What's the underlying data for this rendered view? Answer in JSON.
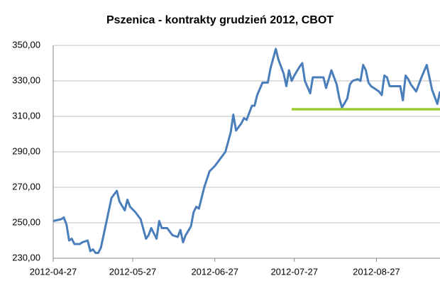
{
  "chart_data": {
    "type": "line",
    "title": "Pszenica - kontrakty grudzień 2012, CBOT",
    "x": [
      "2012-04-27",
      "2012-04-30",
      "2012-05-01",
      "2012-05-02",
      "2012-05-03",
      "2012-05-04",
      "2012-05-05",
      "2012-05-07",
      "2012-05-08",
      "2012-05-10",
      "2012-05-11",
      "2012-05-12",
      "2012-05-13",
      "2012-05-14",
      "2012-05-15",
      "2012-05-17",
      "2012-05-19",
      "2012-05-21",
      "2012-05-22",
      "2012-05-24",
      "2012-05-25",
      "2012-05-26",
      "2012-05-28",
      "2012-05-30",
      "2012-06-01",
      "2012-06-02",
      "2012-06-03",
      "2012-06-05",
      "2012-06-06",
      "2012-06-07",
      "2012-06-09",
      "2012-06-11",
      "2012-06-13",
      "2012-06-14",
      "2012-06-15",
      "2012-06-16",
      "2012-06-18",
      "2012-06-19",
      "2012-06-20",
      "2012-06-21",
      "2012-06-23",
      "2012-06-25",
      "2012-06-27",
      "2012-06-29",
      "2012-07-01",
      "2012-07-03",
      "2012-07-04",
      "2012-07-05",
      "2012-07-07",
      "2012-07-08",
      "2012-07-09",
      "2012-07-11",
      "2012-07-12",
      "2012-07-13",
      "2012-07-15",
      "2012-07-17",
      "2012-07-18",
      "2012-07-20",
      "2012-07-21",
      "2012-07-23",
      "2012-07-24",
      "2012-07-25",
      "2012-07-26",
      "2012-07-27",
      "2012-07-29",
      "2012-07-30",
      "2012-07-31",
      "2012-08-02",
      "2012-08-03",
      "2012-08-05",
      "2012-08-07",
      "2012-08-08",
      "2012-08-10",
      "2012-08-12",
      "2012-08-13",
      "2012-08-14",
      "2012-08-16",
      "2012-08-17",
      "2012-08-18",
      "2012-08-20",
      "2012-08-21",
      "2012-08-22",
      "2012-08-23",
      "2012-08-24",
      "2012-08-25",
      "2012-08-26",
      "2012-08-28",
      "2012-08-29",
      "2012-08-30",
      "2012-08-31",
      "2012-09-01",
      "2012-09-03",
      "2012-09-05",
      "2012-09-06",
      "2012-09-07",
      "2012-09-08",
      "2012-09-09",
      "2012-09-11",
      "2012-09-13",
      "2012-09-15",
      "2012-09-16",
      "2012-09-17",
      "2012-09-19",
      "2012-09-20"
    ],
    "series": [
      {
        "color": "#4a7ebb",
        "values": [
          251,
          252,
          253,
          249,
          240,
          241,
          238,
          238,
          239,
          240,
          234,
          235,
          233,
          233,
          236,
          250,
          264,
          268,
          262,
          257,
          263,
          259,
          256,
          252,
          241,
          243,
          247,
          241,
          251,
          247,
          247,
          243,
          242,
          246,
          239,
          243,
          248,
          256,
          259,
          258,
          270,
          279,
          282,
          286,
          290,
          301,
          311,
          302,
          306,
          309,
          308,
          316,
          316,
          322,
          329,
          329,
          337,
          348,
          342,
          334,
          327,
          336,
          330,
          333,
          338,
          340,
          330,
          323,
          332,
          332,
          332,
          326,
          336,
          328,
          320,
          315,
          320,
          328,
          330,
          331,
          330,
          339,
          336,
          329,
          327,
          326,
          324,
          322,
          333,
          332,
          327,
          327,
          327,
          319,
          333,
          331,
          328,
          324,
          332,
          339,
          332,
          325,
          317,
          324
        ]
      }
    ],
    "reference_line": {
      "value": 314,
      "x": [
        "2012-07-26",
        "2012-09-20"
      ],
      "color": "#99cc33"
    },
    "xlim": [
      "2012-04-27",
      "2012-09-20"
    ],
    "xticks": [
      "2012-04-27",
      "2012-05-27",
      "2012-06-27",
      "2012-07-27",
      "2012-08-27"
    ],
    "ylim": [
      230,
      350
    ],
    "yticks": [
      {
        "value": 230,
        "label": "230,00"
      },
      {
        "value": 250,
        "label": "250,00"
      },
      {
        "value": 270,
        "label": "270,00"
      },
      {
        "value": 290,
        "label": "290,00"
      },
      {
        "value": 310,
        "label": "310,00"
      },
      {
        "value": 330,
        "label": "330,00"
      },
      {
        "value": 350,
        "label": "350,00"
      }
    ],
    "grid": true
  }
}
